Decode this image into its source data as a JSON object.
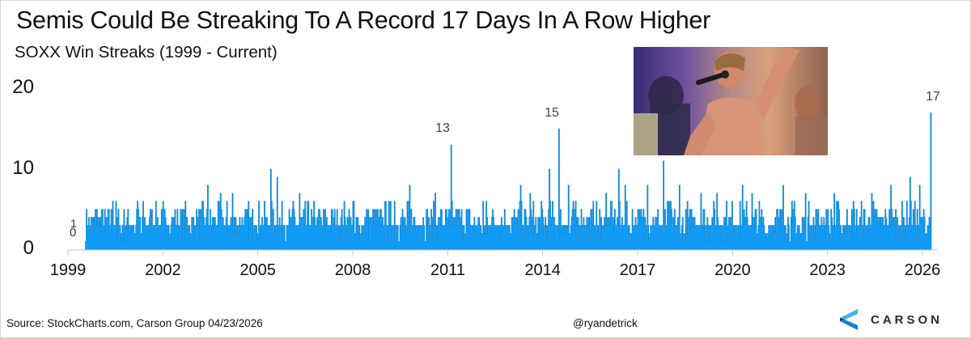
{
  "header": {
    "title": "Semis Could Be Streaking To A Record 17 Days In A Row Higher",
    "subtitle": "SOXX Win Streaks (1999 - Current)"
  },
  "footer": {
    "source": "Source: StockCharts.com, Carson Group 04/23/2026",
    "handle": "@ryandetrick",
    "logo_text": "CARSON"
  },
  "colors": {
    "bar": "#119bf5",
    "bar_edge": "#0a86d8",
    "axis": "#c8c8c8",
    "logo_light": "#4aaef0",
    "logo_dark": "#0f3a5c",
    "logo_mid": "#1a7fd0"
  },
  "photo": {
    "description": "inset photo of shirtless man singing into microphone at party"
  },
  "chart_data": {
    "type": "bar",
    "title": "Semis Could Be Streaking To A Record 17 Days In A Row Higher",
    "subtitle": "SOXX Win Streaks (1999 - Current)",
    "xlabel": "",
    "ylabel": "",
    "ylim": [
      0,
      20
    ],
    "xlim": [
      1999,
      2026.5
    ],
    "grid": false,
    "legend": null,
    "y_ticks": [
      "0",
      "10",
      "20"
    ],
    "x_ticks": [
      "1999",
      "2002",
      "2005",
      "2008",
      "2011",
      "2014",
      "2017",
      "2020",
      "2023",
      "2026"
    ],
    "annotations": [
      {
        "x": 1999.5,
        "y": 1,
        "text": "1"
      },
      {
        "x": 1999.5,
        "y": 0,
        "text": "0"
      },
      {
        "x": 2011.1,
        "y": 13,
        "text": "13"
      },
      {
        "x": 2014.5,
        "y": 15,
        "text": "15"
      },
      {
        "x": 2026.3,
        "y": 17,
        "text": "17"
      }
    ],
    "series": [
      {
        "name": "SOXX consecutive up-day streak",
        "description": "Dense bar series (one bar per streak, ~1999.6 to 2026.3). Baseline mostly 1-5; notable peaks listed below.",
        "peaks": [
          {
            "x": 1999.9,
            "y": 5
          },
          {
            "x": 2000.4,
            "y": 6
          },
          {
            "x": 2001.2,
            "y": 6
          },
          {
            "x": 2002.0,
            "y": 6
          },
          {
            "x": 2003.4,
            "y": 8
          },
          {
            "x": 2003.8,
            "y": 7
          },
          {
            "x": 2004.2,
            "y": 7
          },
          {
            "x": 2005.4,
            "y": 10
          },
          {
            "x": 2005.6,
            "y": 9
          },
          {
            "x": 2006.3,
            "y": 7
          },
          {
            "x": 2008.0,
            "y": 6
          },
          {
            "x": 2009.3,
            "y": 6
          },
          {
            "x": 2009.8,
            "y": 8
          },
          {
            "x": 2010.6,
            "y": 7
          },
          {
            "x": 2011.1,
            "y": 13
          },
          {
            "x": 2012.2,
            "y": 6
          },
          {
            "x": 2013.3,
            "y": 8
          },
          {
            "x": 2013.6,
            "y": 7
          },
          {
            "x": 2014.2,
            "y": 10
          },
          {
            "x": 2014.5,
            "y": 15
          },
          {
            "x": 2014.8,
            "y": 8
          },
          {
            "x": 2016.0,
            "y": 7
          },
          {
            "x": 2016.4,
            "y": 10
          },
          {
            "x": 2016.6,
            "y": 8
          },
          {
            "x": 2017.3,
            "y": 8
          },
          {
            "x": 2017.8,
            "y": 11
          },
          {
            "x": 2018.3,
            "y": 8
          },
          {
            "x": 2019.0,
            "y": 7
          },
          {
            "x": 2019.5,
            "y": 7
          },
          {
            "x": 2020.3,
            "y": 8
          },
          {
            "x": 2020.6,
            "y": 7
          },
          {
            "x": 2021.6,
            "y": 8
          },
          {
            "x": 2022.3,
            "y": 7
          },
          {
            "x": 2023.2,
            "y": 7
          },
          {
            "x": 2023.8,
            "y": 6
          },
          {
            "x": 2024.4,
            "y": 7
          },
          {
            "x": 2025.0,
            "y": 8
          },
          {
            "x": 2025.6,
            "y": 9
          },
          {
            "x": 2025.9,
            "y": 8
          },
          {
            "x": 2026.3,
            "y": 17
          }
        ]
      }
    ]
  }
}
